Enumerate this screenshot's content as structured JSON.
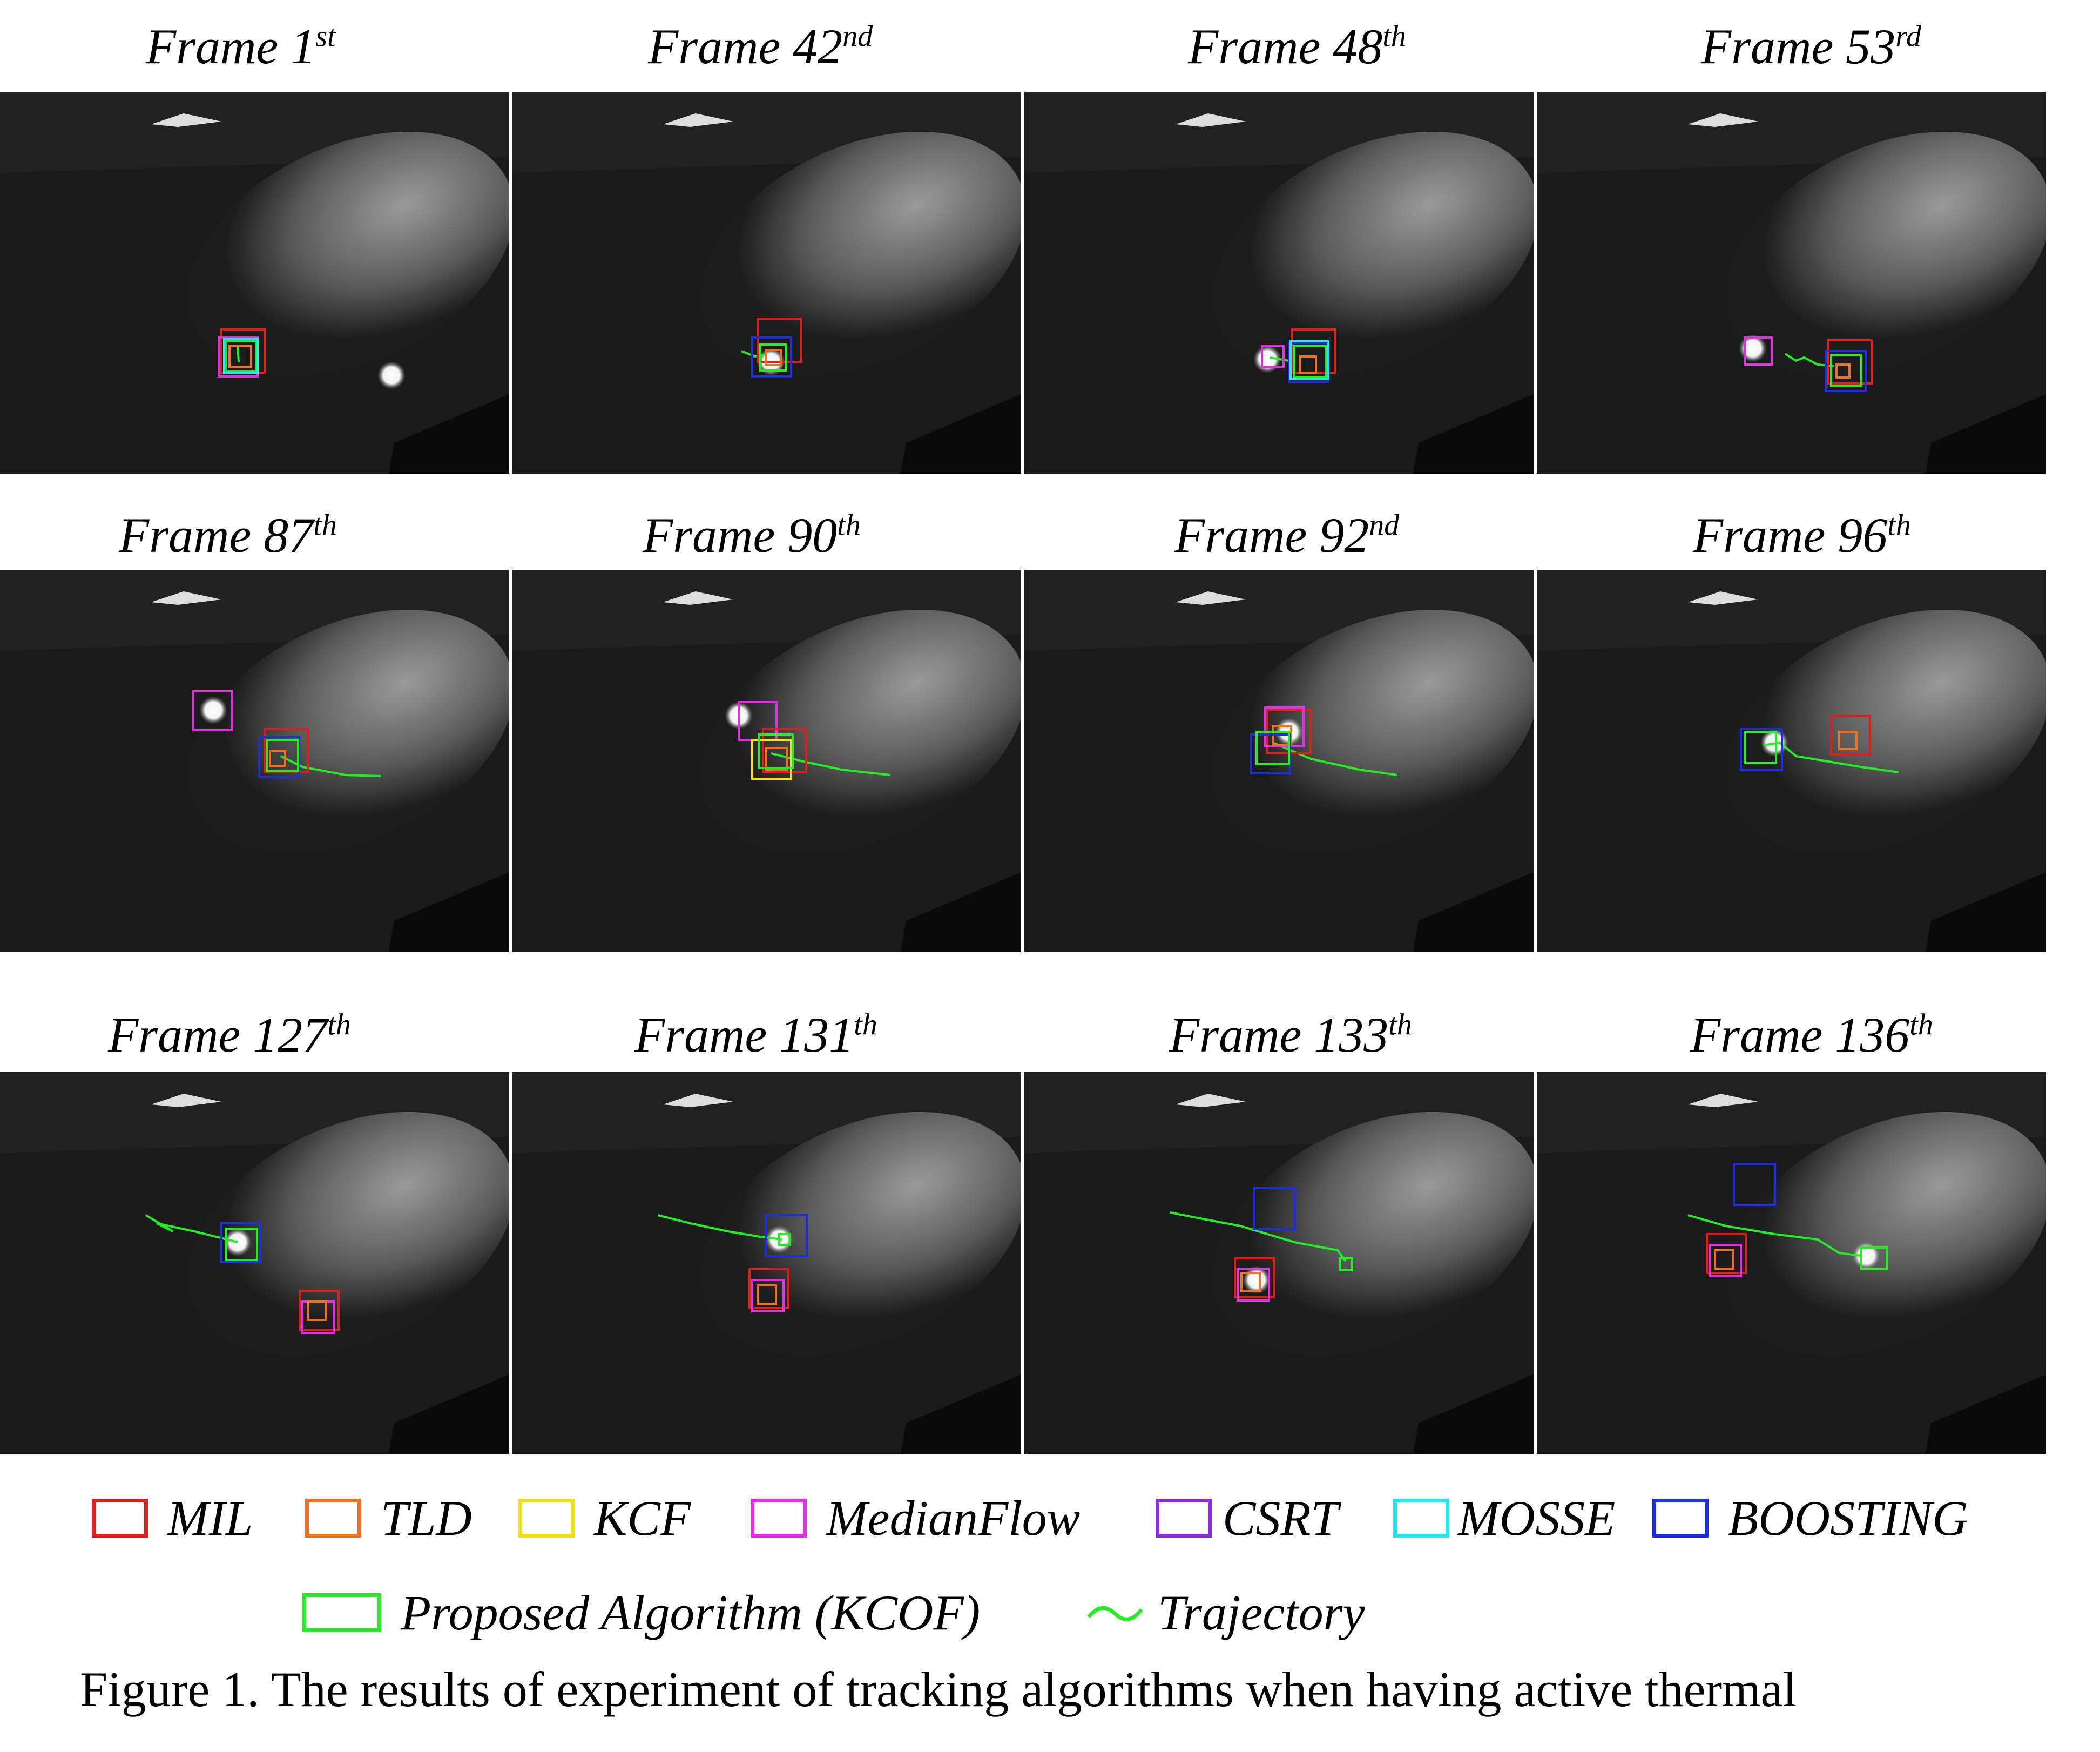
{
  "figure": {
    "caption": "Figure 1. The results of experiment of tracking algorithms when having active thermal"
  },
  "frames": [
    {
      "label": "Frame 1",
      "suffix": "st"
    },
    {
      "label": "Frame 42",
      "suffix": "nd"
    },
    {
      "label": "Frame 48",
      "suffix": "th"
    },
    {
      "label": "Frame 53",
      "suffix": "rd"
    },
    {
      "label": "Frame 87",
      "suffix": "th"
    },
    {
      "label": "Frame 90",
      "suffix": "th"
    },
    {
      "label": "Frame 92",
      "suffix": "nd"
    },
    {
      "label": "Frame 96",
      "suffix": "th"
    },
    {
      "label": "Frame 127",
      "suffix": "th"
    },
    {
      "label": "Frame 131",
      "suffix": "th"
    },
    {
      "label": "Frame 133",
      "suffix": "th"
    },
    {
      "label": "Frame 136",
      "suffix": "th"
    }
  ],
  "legend": [
    {
      "label": "MIL",
      "color": "#e21b1b"
    },
    {
      "label": "TLD",
      "color": "#f07020"
    },
    {
      "label": "KCF",
      "color": "#f2e020"
    },
    {
      "label": "MedianFlow",
      "color": "#e030e0"
    },
    {
      "label": "CSRT",
      "color": "#8a2be2"
    },
    {
      "label": "MOSSE",
      "color": "#20e8f0"
    },
    {
      "label": "BOOSTING",
      "color": "#1c2ee0"
    },
    {
      "label": "Proposed Algorithm (KCOF)",
      "color": "#22ee22"
    },
    {
      "label": "Trajectory",
      "color": "#22ee22",
      "icon": "trajectory-line-icon"
    }
  ]
}
